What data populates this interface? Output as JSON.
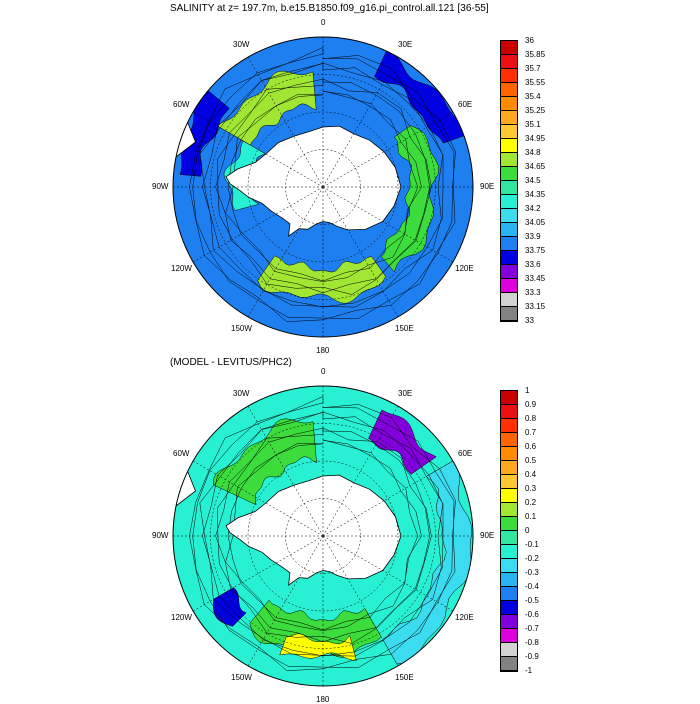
{
  "panels": [
    {
      "id": "top",
      "title": "SALINITY at z= 197.7m, b.e15.B1850.f09_g16.pi_control.all.121 [36-55]",
      "lon_labels": [
        "0",
        "30E",
        "60E",
        "90E",
        "120E",
        "150E",
        "180",
        "150W",
        "120W",
        "90W",
        "60W",
        "30W"
      ],
      "colorbar": {
        "levels": [
          "36",
          "35.85",
          "35.7",
          "35.55",
          "35.4",
          "35.25",
          "35.1",
          "34.95",
          "34.8",
          "34.65",
          "34.5",
          "34.35",
          "34.2",
          "34.05",
          "33.9",
          "33.75",
          "33.6",
          "33.45",
          "33.3",
          "33.15",
          "33"
        ],
        "colors": [
          "#c80000",
          "#e81010",
          "#ff3000",
          "#ff6400",
          "#ff8c00",
          "#ffa820",
          "#ffc832",
          "#ffff00",
          "#a0e632",
          "#3cdc3c",
          "#32e6a0",
          "#28f0d2",
          "#3cdcf0",
          "#28b4f0",
          "#1e7ff0",
          "#0000e0",
          "#8200dc",
          "#dc00dc",
          "#d2d2d2",
          "#828282"
        ]
      },
      "fill_color": "#1e7ff0",
      "regions": [
        {
          "name": "atlantic-sector-high-band",
          "color": "#a0e632"
        },
        {
          "name": "pacific-sector-high-band",
          "color": "#a0e632"
        },
        {
          "name": "indian-sector-high-band",
          "color": "#3cdc3c"
        },
        {
          "name": "weddell-shelf-band",
          "color": "#28f0d2"
        },
        {
          "name": "west-indian-low-region",
          "color": "#0000e0"
        },
        {
          "name": "southeast-pacific-low-region",
          "color": "#0000e0"
        }
      ]
    },
    {
      "id": "bottom",
      "title": "(MODEL - LEVITUS/PHC2)",
      "lon_labels": [
        "0",
        "30E",
        "60E",
        "90E",
        "120E",
        "150E",
        "180",
        "150W",
        "120W",
        "90W",
        "60W",
        "30W"
      ],
      "colorbar": {
        "levels": [
          "1",
          "0.9",
          "0.8",
          "0.7",
          "0.6",
          "0.5",
          "0.4",
          "0.3",
          "0.2",
          "0.1",
          "0",
          "-0.1",
          "-0.2",
          "-0.3",
          "-0.4",
          "-0.5",
          "-0.6",
          "-0.7",
          "-0.8",
          "-0.9",
          "-1"
        ],
        "colors": [
          "#c80000",
          "#e81010",
          "#ff3000",
          "#ff6400",
          "#ff8c00",
          "#ffa820",
          "#ffc832",
          "#ffff00",
          "#a0e632",
          "#3cdc3c",
          "#32e6a0",
          "#28f0d2",
          "#3cdcf0",
          "#28b4f0",
          "#1e7ff0",
          "#0000e0",
          "#8200dc",
          "#dc00dc",
          "#d2d2d2",
          "#828282"
        ]
      },
      "fill_color": "#28f0d2",
      "regions": [
        {
          "name": "atlantic-positive-band",
          "color": "#3cdc3c"
        },
        {
          "name": "pacific-positive-band",
          "color": "#3cdc3c"
        },
        {
          "name": "pacific-strong-positive",
          "color": "#ffff00"
        },
        {
          "name": "indian-negative-region",
          "color": "#8200dc"
        },
        {
          "name": "southeast-pacific-negative",
          "color": "#0000e0"
        },
        {
          "name": "open-ocean-negative-band",
          "color": "#3cdcf0"
        }
      ]
    }
  ],
  "colors": {
    "land": "#ffffff",
    "grid": "#000000",
    "coast": "#000000"
  }
}
